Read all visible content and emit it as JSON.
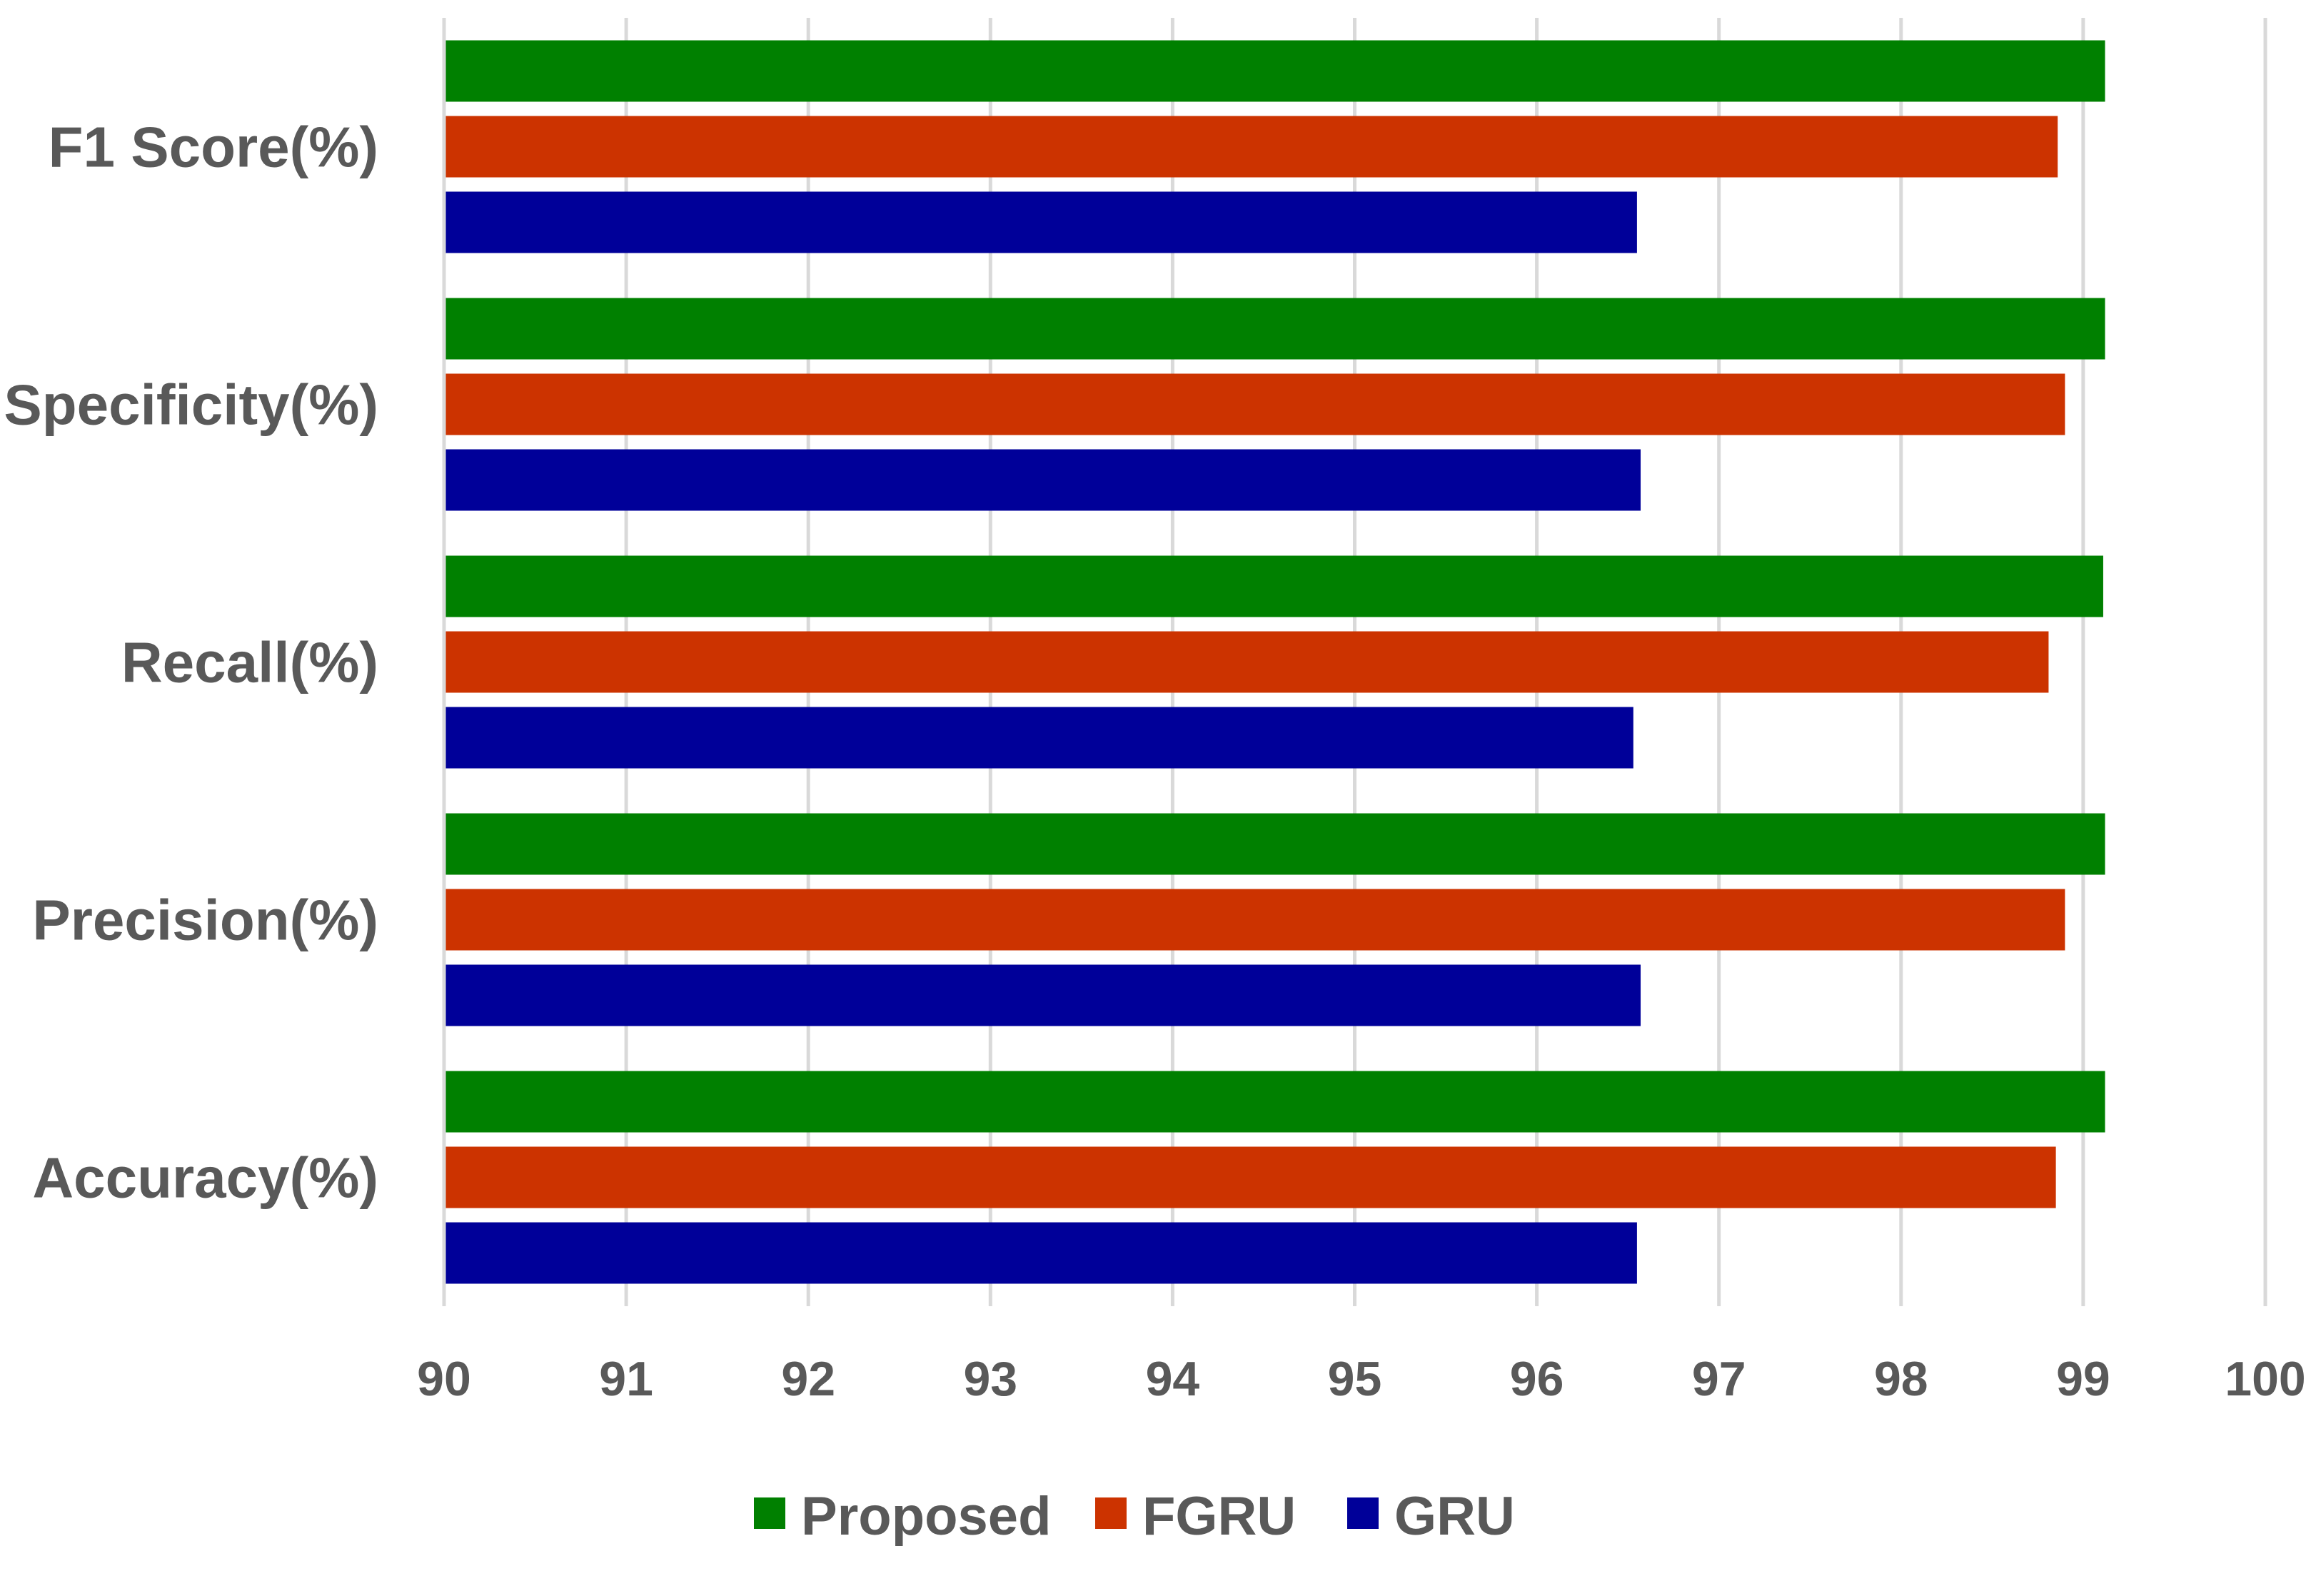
{
  "chart_data": {
    "type": "bar",
    "orientation": "horizontal",
    "title": "",
    "xlabel": "",
    "ylabel": "",
    "categories": [
      "F1 Score(%)",
      "Specificity(%)",
      "Recall(%)",
      "Precision(%)",
      "Accuracy(%)"
    ],
    "series": [
      {
        "name": "Proposed",
        "color": "#008000",
        "values": [
          99.12,
          99.12,
          99.11,
          99.12,
          99.12
        ]
      },
      {
        "name": "FGRU",
        "color": "#CC3300",
        "values": [
          98.86,
          98.9,
          98.81,
          98.9,
          98.85
        ]
      },
      {
        "name": "GRU",
        "color": "#000099",
        "values": [
          96.55,
          96.57,
          96.53,
          96.57,
          96.55
        ]
      }
    ],
    "xlim": [
      90,
      100
    ],
    "xticks": [
      "90",
      "91",
      "92",
      "93",
      "94",
      "95",
      "96",
      "97",
      "98",
      "99",
      "100"
    ],
    "grid": "vertical",
    "legend_position": "bottom"
  }
}
